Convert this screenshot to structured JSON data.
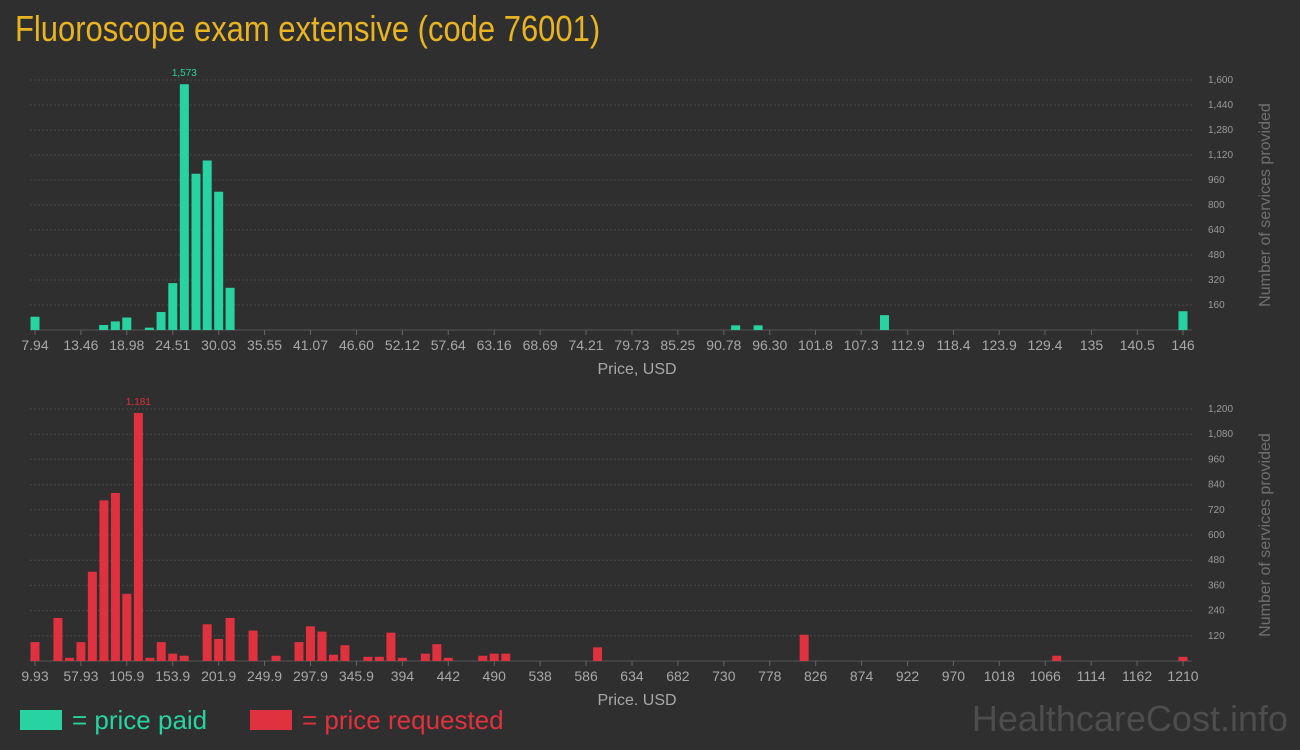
{
  "title": "Fluoroscope exam extensive (code 76001)",
  "legend": {
    "paid_label": "= price paid",
    "requested_label": "= price requested",
    "paid_color": "#27d3a0",
    "requested_color": "#e0313f"
  },
  "watermark": "HealthcareCost.info",
  "chart_data": [
    {
      "type": "bar",
      "name": "price paid",
      "color": "#27d3a0",
      "xlabel": "Price, USD",
      "ylabel": "Number of services provided",
      "ylim": [
        0,
        1600
      ],
      "yticks": [
        160,
        320,
        480,
        640,
        800,
        960,
        1120,
        1280,
        1440,
        1600
      ],
      "ytick_labels": [
        "160",
        "320",
        "480",
        "640",
        "800",
        "960",
        "1,120",
        "1,280",
        "1,440",
        "1,600"
      ],
      "xlim": [
        7.94,
        146
      ],
      "xticks": [
        7.94,
        13.46,
        18.98,
        24.51,
        30.03,
        35.55,
        41.07,
        46.6,
        52.12,
        57.64,
        63.16,
        68.69,
        74.21,
        79.73,
        85.25,
        90.78,
        96.3,
        101.8,
        107.3,
        112.9,
        118.4,
        123.9,
        129.4,
        135,
        140.5,
        146
      ],
      "xtick_labels": [
        "7.94",
        "13.46",
        "18.98",
        "24.51",
        "30.03",
        "35.55",
        "41.07",
        "46.60",
        "52.12",
        "57.64",
        "63.16",
        "68.69",
        "74.21",
        "79.73",
        "85.25",
        "90.78",
        "96.30",
        "101.8",
        "107.3",
        "112.9",
        "118.4",
        "123.9",
        "129.4",
        "135",
        "140.5",
        "146"
      ],
      "bars": [
        {
          "x": 7.94,
          "value": 85
        },
        {
          "x": 16.2,
          "value": 32
        },
        {
          "x": 17.6,
          "value": 55
        },
        {
          "x": 18.98,
          "value": 80
        },
        {
          "x": 21.7,
          "value": 15
        },
        {
          "x": 23.1,
          "value": 115
        },
        {
          "x": 24.51,
          "value": 300
        },
        {
          "x": 25.9,
          "value": 1573
        },
        {
          "x": 27.3,
          "value": 1000
        },
        {
          "x": 28.65,
          "value": 1085
        },
        {
          "x": 30.03,
          "value": 885
        },
        {
          "x": 31.4,
          "value": 270
        },
        {
          "x": 92.2,
          "value": 30
        },
        {
          "x": 94.9,
          "value": 30
        },
        {
          "x": 110.1,
          "value": 95
        },
        {
          "x": 146,
          "value": 120
        }
      ],
      "peak_label": "1,573"
    },
    {
      "type": "bar",
      "name": "price requested",
      "color": "#e0313f",
      "xlabel": "Price, USD",
      "ylabel": "Number of services provided",
      "ylim": [
        0,
        1200
      ],
      "yticks": [
        120,
        240,
        360,
        480,
        600,
        720,
        840,
        960,
        1080,
        1200
      ],
      "ytick_labels": [
        "120",
        "240",
        "360",
        "480",
        "600",
        "720",
        "840",
        "960",
        "1,080",
        "1,200"
      ],
      "xlim": [
        9.93,
        1210
      ],
      "xticks": [
        9.93,
        57.93,
        105.9,
        153.9,
        201.9,
        249.9,
        297.9,
        345.9,
        394,
        442,
        490,
        538,
        586,
        634,
        682,
        730,
        778,
        826,
        874,
        922,
        970,
        1018,
        1066,
        1114,
        1162,
        1210
      ],
      "xtick_labels": [
        "9.93",
        "57.93",
        "105.9",
        "153.9",
        "201.9",
        "249.9",
        "297.9",
        "345.9",
        "394",
        "442",
        "490",
        "538",
        "586",
        "634",
        "682",
        "730",
        "778",
        "826",
        "874",
        "922",
        "970",
        "1018",
        "1066",
        "1114",
        "1162",
        "1210"
      ],
      "bars": [
        {
          "x": 9.93,
          "value": 90
        },
        {
          "x": 33.9,
          "value": 205
        },
        {
          "x": 46,
          "value": 15
        },
        {
          "x": 57.93,
          "value": 90
        },
        {
          "x": 69.9,
          "value": 425
        },
        {
          "x": 82,
          "value": 765
        },
        {
          "x": 94,
          "value": 800
        },
        {
          "x": 105.9,
          "value": 320
        },
        {
          "x": 118,
          "value": 1181
        },
        {
          "x": 130,
          "value": 15
        },
        {
          "x": 141.9,
          "value": 90
        },
        {
          "x": 153.9,
          "value": 35
        },
        {
          "x": 165.9,
          "value": 25
        },
        {
          "x": 189.9,
          "value": 175
        },
        {
          "x": 201.9,
          "value": 105
        },
        {
          "x": 213.9,
          "value": 205
        },
        {
          "x": 237.9,
          "value": 145
        },
        {
          "x": 261.9,
          "value": 25
        },
        {
          "x": 285.9,
          "value": 90
        },
        {
          "x": 297.9,
          "value": 165
        },
        {
          "x": 309.9,
          "value": 140
        },
        {
          "x": 321.9,
          "value": 30
        },
        {
          "x": 333.9,
          "value": 75
        },
        {
          "x": 357.9,
          "value": 20
        },
        {
          "x": 369.9,
          "value": 20
        },
        {
          "x": 382,
          "value": 135
        },
        {
          "x": 394,
          "value": 15
        },
        {
          "x": 418,
          "value": 35
        },
        {
          "x": 430,
          "value": 80
        },
        {
          "x": 442,
          "value": 15
        },
        {
          "x": 478,
          "value": 25
        },
        {
          "x": 490,
          "value": 35
        },
        {
          "x": 502,
          "value": 35
        },
        {
          "x": 598,
          "value": 65
        },
        {
          "x": 814,
          "value": 125
        },
        {
          "x": 1078,
          "value": 25
        },
        {
          "x": 1210,
          "value": 20
        }
      ],
      "peak_label": "1,181"
    }
  ]
}
